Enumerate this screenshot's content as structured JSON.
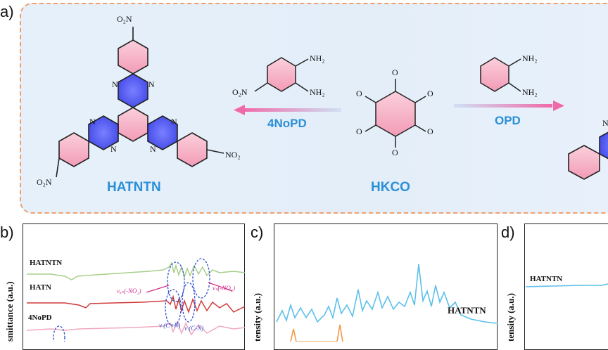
{
  "panels": {
    "a": "a)",
    "b": "b)",
    "c": "c)",
    "d": "d)"
  },
  "scheme": {
    "product_left": "HATNTN",
    "reagent_left": "4NoPD",
    "center": "HKCO",
    "reagent_right": "OPD",
    "atoms": {
      "no2_sub": "O₂N",
      "no2_sup": "NO₂",
      "nh2": "NH₂",
      "n": "N",
      "o": "O"
    }
  },
  "colors": {
    "ring_pink": "#f4a9c0",
    "ring_blue": "#5a62ee",
    "arrow_pink": "#f06aa8",
    "label_blue": "#2b8fd8",
    "ftir_green": "#a8cf8a",
    "ftir_red": "#d03a3a",
    "ftir_pink": "#f1a8c0",
    "xrd_blue": "#5cc0ea",
    "xrd_orange": "#f29a4a"
  },
  "plot_b": {
    "ylabel": "smittance (a.u.)",
    "series": [
      "HATNTN",
      "HATN",
      "4NoPD"
    ],
    "annotations": {
      "vas": "νₐₛ(-NO₂)",
      "vs": "νₛ(-NO₂)",
      "vcn1": "ν (C=N)",
      "vcn2": "ν (C-N)"
    }
  },
  "plot_c": {
    "ylabel": "tensity (a.u.)",
    "series": [
      "HATNTN"
    ]
  },
  "plot_d": {
    "ylabel": "tensity (a.u.)",
    "series": [
      "HATNTN"
    ]
  }
}
